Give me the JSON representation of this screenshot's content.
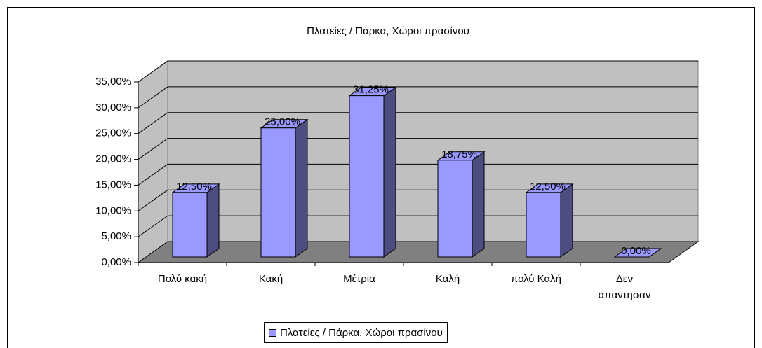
{
  "chart_data": {
    "type": "bar3d",
    "title": "Πλατείες / Πάρκα, Χώροι πρασίνου",
    "categories": [
      "Πολύ κακή",
      "Κακή",
      "Μέτρια",
      "Καλή",
      "πολύ Καλή",
      "Δεν απαντησαν"
    ],
    "series": [
      {
        "name": "Πλατείες / Πάρκα, Χώροι πρασίνου",
        "color": "#9999ff",
        "values": [
          12.5,
          25,
          31.25,
          18.75,
          12.5,
          0
        ],
        "value_labels": [
          "12,50%",
          "25,00%",
          "31,25%",
          "18,75%",
          "12,50%",
          "0,00%"
        ]
      }
    ],
    "ylim": [
      0,
      35
    ],
    "yticks": [
      {
        "value": 0,
        "label": "0,00%"
      },
      {
        "value": 5,
        "label": "5,00%"
      },
      {
        "value": 10,
        "label": "10,00%"
      },
      {
        "value": 15,
        "label": "15,00%"
      },
      {
        "value": 20,
        "label": "20,00%"
      },
      {
        "value": 25,
        "label": "25,00%"
      },
      {
        "value": 30,
        "label": "30,00%"
      },
      {
        "value": 35,
        "label": "35,00%"
      }
    ],
    "grid": true,
    "legend": "bottom"
  }
}
